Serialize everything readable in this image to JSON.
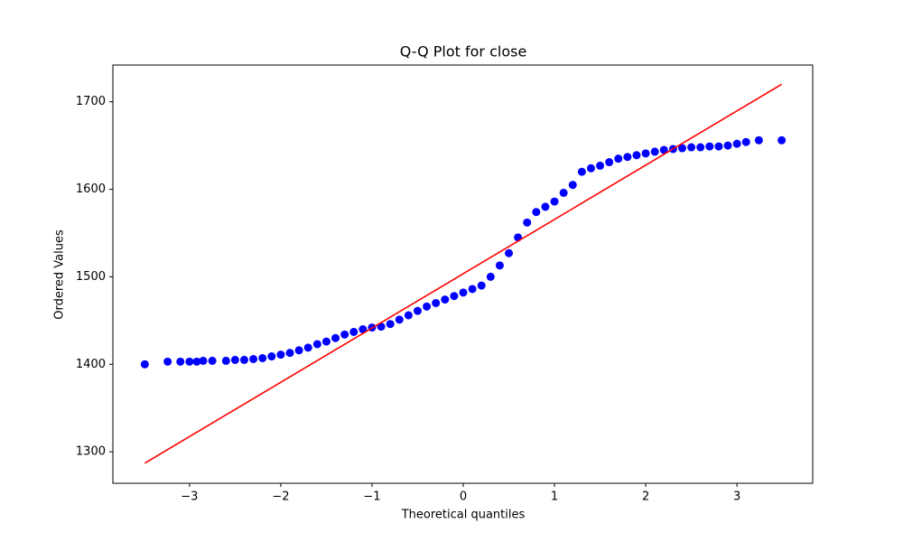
{
  "chart_data": {
    "type": "scatter",
    "title": "Q-Q Plot for close",
    "x_label": "Theoretical quantiles",
    "y_label": "Ordered Values",
    "xlim": [
      -3.84,
      3.83
    ],
    "ylim": [
      1264,
      1742
    ],
    "xticks": [
      {
        "value": -3,
        "label": "−3"
      },
      {
        "value": -2,
        "label": "−2"
      },
      {
        "value": -1,
        "label": "−1"
      },
      0,
      1,
      2,
      3
    ],
    "yticks": [
      1300,
      1400,
      1500,
      1600,
      1700
    ],
    "series": [
      {
        "type": "scatter",
        "color": "#0000ff",
        "x": [
          -3.49,
          -3.24,
          -3.1,
          -3.0,
          -2.92,
          -2.85,
          -2.75,
          -2.6,
          -2.5,
          -2.4,
          -2.3,
          -2.2,
          -2.1,
          -2.0,
          -1.9,
          -1.8,
          -1.7,
          -1.6,
          -1.5,
          -1.4,
          -1.3,
          -1.2,
          -1.1,
          -1.0,
          -0.9,
          -0.8,
          -0.7,
          -0.6,
          -0.5,
          -0.4,
          -0.3,
          -0.2,
          -0.1,
          0.0,
          0.1,
          0.2,
          0.3,
          0.4,
          0.5,
          0.6,
          0.7,
          0.8,
          0.9,
          1.0,
          1.1,
          1.2,
          1.3,
          1.4,
          1.5,
          1.6,
          1.7,
          1.8,
          1.9,
          2.0,
          2.1,
          2.2,
          2.3,
          2.4,
          2.5,
          2.6,
          2.7,
          2.8,
          2.9,
          3.0,
          3.1,
          3.24,
          3.49
        ],
        "values": [
          1400,
          1403,
          1403,
          1403,
          1403,
          1404,
          1404,
          1404,
          1405,
          1405,
          1406,
          1407,
          1409,
          1411,
          1413,
          1416,
          1419,
          1423,
          1426,
          1430,
          1434,
          1437,
          1440,
          1442,
          1443,
          1446,
          1451,
          1456,
          1461,
          1466,
          1470,
          1474,
          1478,
          1482,
          1486,
          1490,
          1500,
          1513,
          1527,
          1545,
          1562,
          1574,
          1580,
          1586,
          1596,
          1605,
          1620,
          1624,
          1627,
          1631,
          1635,
          1637,
          1639,
          1641,
          1643,
          1645,
          1646,
          1647,
          1648,
          1648,
          1649,
          1649,
          1650,
          1652,
          1654,
          1656,
          1656
        ]
      },
      {
        "type": "line",
        "color": "#ff0000",
        "x": [
          -3.49,
          3.49
        ],
        "values": [
          1287,
          1720
        ]
      }
    ]
  }
}
